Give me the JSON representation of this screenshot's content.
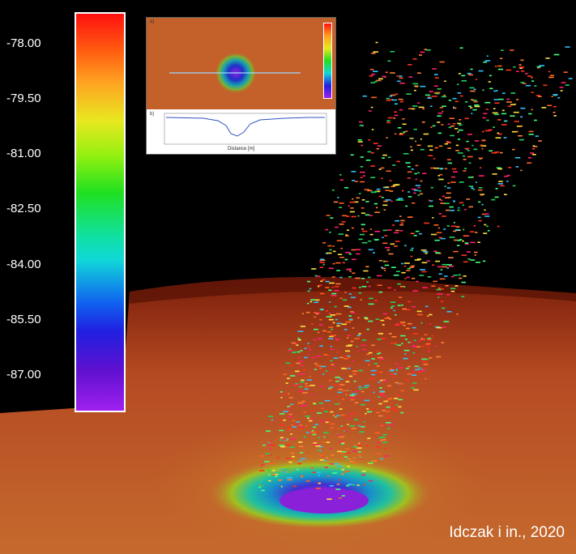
{
  "colorbar": {
    "ticks": [
      "-78.00",
      "-79.50",
      "-81.00",
      "-82.50",
      "-84.00",
      "-85.50",
      "-87.00"
    ]
  },
  "inset": {
    "panel_a": "a)",
    "panel_b": "b)",
    "xlabel": "Distance [m]"
  },
  "credit": "Idczak i in., 2020"
}
